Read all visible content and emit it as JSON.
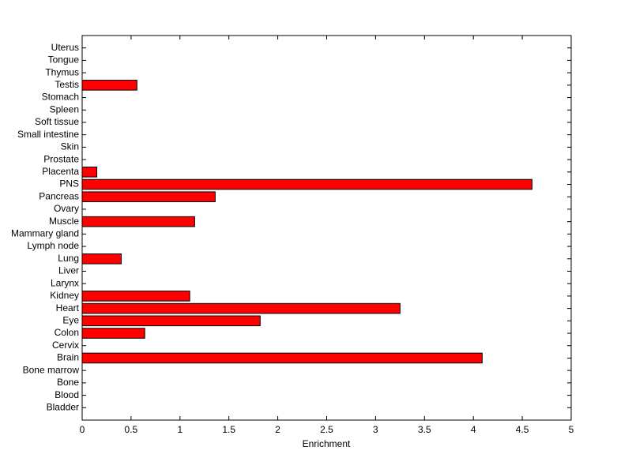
{
  "chart_data": {
    "type": "barh",
    "xlabel": "Enrichment",
    "categories": [
      "Bladder",
      "Blood",
      "Bone",
      "Bone marrow",
      "Brain",
      "Cervix",
      "Colon",
      "Eye",
      "Heart",
      "Kidney",
      "Larynx",
      "Liver",
      "Lung",
      "Lymph node",
      "Mammary gland",
      "Muscle",
      "Ovary",
      "Pancreas",
      "PNS",
      "Placenta",
      "Prostate",
      "Skin",
      "Small intestine",
      "Soft tissue",
      "Spleen",
      "Stomach",
      "Testis",
      "Thymus",
      "Tongue",
      "Uterus"
    ],
    "values": [
      0,
      0,
      0,
      0,
      4.09,
      0,
      0.64,
      1.82,
      3.25,
      1.1,
      0,
      0,
      0.4,
      0,
      0,
      1.15,
      0,
      1.36,
      4.6,
      0.15,
      0,
      0,
      0,
      0,
      0,
      0,
      0.56,
      0,
      0,
      0
    ],
    "color": "#ff0000",
    "xlim": [
      0,
      5
    ],
    "xticks": [
      0,
      0.5,
      1,
      1.5,
      2,
      2.5,
      3,
      3.5,
      4,
      4.5,
      5
    ],
    "grid": false
  }
}
